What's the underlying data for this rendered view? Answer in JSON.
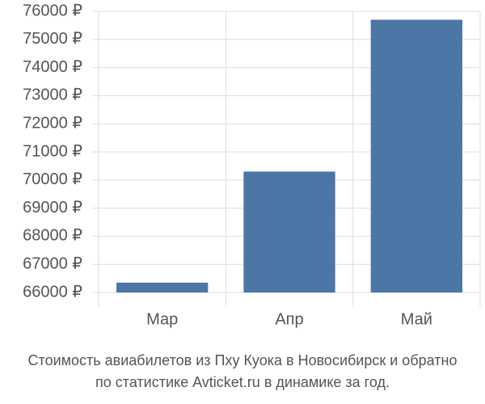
{
  "chart_data": {
    "type": "bar",
    "title": "Стоимость авиабилетов из Пху Куока в Новосибирск и обратно",
    "subtitle": "по статистике Avticket.ru в динамике за год.",
    "categories": [
      "Мар",
      "Апр",
      "Май"
    ],
    "values": [
      66350,
      70300,
      75700
    ],
    "color": "#4b76a6",
    "ylim": [
      66000,
      76000
    ],
    "yticks": [
      {
        "value": 66000,
        "label": "66000 ₽"
      },
      {
        "value": 67000,
        "label": "67000 ₽"
      },
      {
        "value": 68000,
        "label": "68000 ₽"
      },
      {
        "value": 69000,
        "label": "69000 ₽"
      },
      {
        "value": 70000,
        "label": "70000 ₽"
      },
      {
        "value": 71000,
        "label": "71000 ₽"
      },
      {
        "value": 72000,
        "label": "72000 ₽"
      },
      {
        "value": 73000,
        "label": "73000 ₽"
      },
      {
        "value": 74000,
        "label": "74000 ₽"
      },
      {
        "value": 75000,
        "label": "75000 ₽"
      },
      {
        "value": 76000,
        "label": "76000 ₽"
      }
    ],
    "grid": true
  }
}
